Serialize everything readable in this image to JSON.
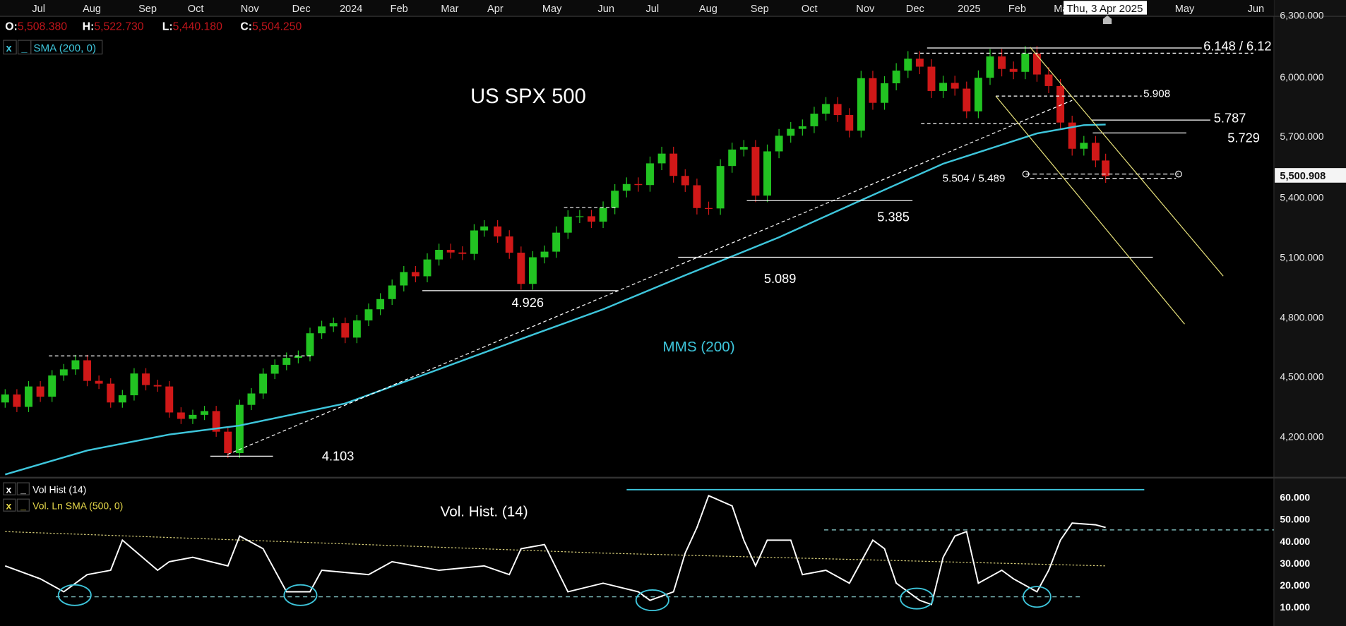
{
  "header": {
    "ohlc": [
      {
        "label": "O:",
        "value": "5,508.380"
      },
      {
        "label": "H:",
        "value": "5,522.730"
      },
      {
        "label": "L:",
        "value": "5,440.180"
      },
      {
        "label": "C:",
        "value": "5,504.250"
      }
    ],
    "indicator": {
      "close": "x",
      "minimize": "_",
      "label": "SMA (200, 0)"
    }
  },
  "volume_pane": {
    "indicators": [
      {
        "close": "x",
        "minimize": "_",
        "label": "Vol Hist (14)"
      },
      {
        "close": "x",
        "minimize": "_",
        "label": "Vol. Ln SMA (500, 0)"
      }
    ],
    "title": "Vol. Hist. (14)"
  },
  "crosshair_tooltip": "Thu, 3 Apr 2025",
  "colors": {
    "up": "#22c322",
    "down": "#d01818",
    "sma": "#3ec6dc",
    "channel": "#e6e07a",
    "background": "#000000",
    "axis_bg": "#121212",
    "ohlc_values": "#c0151b"
  },
  "chart_data": [
    {
      "type": "candlestick",
      "title": "US SPX 500",
      "sma_label": "MMS (200)",
      "x_tick_labels": [
        "Jul",
        "Aug",
        "Sep",
        "Oct",
        "Nov",
        "Dec",
        "2024",
        "Feb",
        "Mar",
        "Apr",
        "May",
        "Jun",
        "Jul",
        "Aug",
        "Sep",
        "Oct",
        "Nov",
        "Dec",
        "2025",
        "Feb",
        "Ma",
        "May",
        "Jun"
      ],
      "y_tick_labels": [
        "6,300.000",
        "6,000.000",
        "5,700.000",
        "5,400.000",
        "5,100.000",
        "4,800.000",
        "4,500.000",
        "4,200.000"
      ],
      "y_ticks": [
        6300,
        6000,
        5700,
        5400,
        5100,
        4800,
        4500,
        4200
      ],
      "last_price_label": "5,500.908",
      "last_price": 5500.908,
      "grid": false,
      "closes": [
        [
          "2023-06-16",
          4410
        ],
        [
          "2023-06-23",
          4348
        ],
        [
          "2023-06-30",
          4450
        ],
        [
          "2023-07-07",
          4399
        ],
        [
          "2023-07-14",
          4505
        ],
        [
          "2023-07-21",
          4536
        ],
        [
          "2023-07-28",
          4582
        ],
        [
          "2023-08-04",
          4478
        ],
        [
          "2023-08-11",
          4464
        ],
        [
          "2023-08-18",
          4370
        ],
        [
          "2023-08-25",
          4406
        ],
        [
          "2023-09-01",
          4515
        ],
        [
          "2023-09-08",
          4457
        ],
        [
          "2023-09-15",
          4450
        ],
        [
          "2023-09-22",
          4320
        ],
        [
          "2023-09-29",
          4288
        ],
        [
          "2023-10-06",
          4308
        ],
        [
          "2023-10-13",
          4327
        ],
        [
          "2023-10-20",
          4224
        ],
        [
          "2023-10-27",
          4117
        ],
        [
          "2023-11-03",
          4358
        ],
        [
          "2023-11-10",
          4415
        ],
        [
          "2023-11-17",
          4514
        ],
        [
          "2023-11-24",
          4559
        ],
        [
          "2023-12-01",
          4594
        ],
        [
          "2023-12-08",
          4604
        ],
        [
          "2023-12-15",
          4719
        ],
        [
          "2023-12-22",
          4754
        ],
        [
          "2023-12-29",
          4770
        ],
        [
          "2024-01-05",
          4697
        ],
        [
          "2024-01-12",
          4784
        ],
        [
          "2024-01-19",
          4840
        ],
        [
          "2024-01-26",
          4891
        ],
        [
          "2024-02-02",
          4959
        ],
        [
          "2024-02-09",
          5026
        ],
        [
          "2024-02-16",
          5005
        ],
        [
          "2024-02-23",
          5089
        ],
        [
          "2024-03-01",
          5137
        ],
        [
          "2024-03-08",
          5124
        ],
        [
          "2024-03-15",
          5117
        ],
        [
          "2024-03-22",
          5234
        ],
        [
          "2024-03-28",
          5254
        ],
        [
          "2024-04-05",
          5204
        ],
        [
          "2024-04-12",
          5123
        ],
        [
          "2024-04-19",
          4967
        ],
        [
          "2024-04-26",
          5100
        ],
        [
          "2024-05-03",
          5128
        ],
        [
          "2024-05-10",
          5223
        ],
        [
          "2024-05-17",
          5303
        ],
        [
          "2024-05-24",
          5305
        ],
        [
          "2024-05-31",
          5278
        ],
        [
          "2024-06-07",
          5347
        ],
        [
          "2024-06-14",
          5432
        ],
        [
          "2024-06-21",
          5465
        ],
        [
          "2024-06-28",
          5460
        ],
        [
          "2024-07-05",
          5567
        ],
        [
          "2024-07-12",
          5615
        ],
        [
          "2024-07-19",
          5505
        ],
        [
          "2024-07-26",
          5459
        ],
        [
          "2024-08-02",
          5346
        ],
        [
          "2024-08-09",
          5344
        ],
        [
          "2024-08-16",
          5554
        ],
        [
          "2024-08-23",
          5635
        ],
        [
          "2024-08-30",
          5648
        ],
        [
          "2024-09-06",
          5408
        ],
        [
          "2024-09-13",
          5626
        ],
        [
          "2024-09-20",
          5703
        ],
        [
          "2024-09-27",
          5738
        ],
        [
          "2024-10-04",
          5751
        ],
        [
          "2024-10-11",
          5815
        ],
        [
          "2024-10-18",
          5864
        ],
        [
          "2024-10-25",
          5808
        ],
        [
          "2024-11-01",
          5729
        ],
        [
          "2024-11-08",
          5995
        ],
        [
          "2024-11-15",
          5870
        ],
        [
          "2024-11-22",
          5969
        ],
        [
          "2024-11-29",
          6032
        ],
        [
          "2024-12-06",
          6090
        ],
        [
          "2024-12-13",
          6051
        ],
        [
          "2024-12-20",
          5930
        ],
        [
          "2024-12-27",
          5971
        ],
        [
          "2025-01-03",
          5942
        ],
        [
          "2025-01-10",
          5827
        ],
        [
          "2025-01-17",
          5997
        ],
        [
          "2025-01-24",
          6101
        ],
        [
          "2025-01-31",
          6040
        ],
        [
          "2025-02-07",
          6026
        ],
        [
          "2025-02-14",
          6115
        ],
        [
          "2025-02-21",
          6013
        ],
        [
          "2025-02-28",
          5955
        ],
        [
          "2025-03-07",
          5770
        ],
        [
          "2025-03-14",
          5639
        ],
        [
          "2025-03-21",
          5668
        ],
        [
          "2025-03-28",
          5581
        ],
        [
          "2025-04-03",
          5504
        ]
      ],
      "sma200": [
        [
          "2023-06-16",
          4010
        ],
        [
          "2023-08-04",
          4130
        ],
        [
          "2023-09-22",
          4210
        ],
        [
          "2023-11-03",
          4255
        ],
        [
          "2024-01-05",
          4365
        ],
        [
          "2024-02-23",
          4515
        ],
        [
          "2024-04-19",
          4690
        ],
        [
          "2024-06-07",
          4840
        ],
        [
          "2024-07-26",
          5010
        ],
        [
          "2024-09-20",
          5200
        ],
        [
          "2024-11-08",
          5385
        ],
        [
          "2024-12-27",
          5565
        ],
        [
          "2025-02-21",
          5715
        ],
        [
          "2025-03-21",
          5757
        ],
        [
          "2025-04-03",
          5760
        ]
      ],
      "annotations": [
        {
          "label": "4.103",
          "level": 4103
        },
        {
          "label": "4.926",
          "level": 4926
        },
        {
          "label": "5.089",
          "level": 5089
        },
        {
          "label": "5.385",
          "level": 5385
        },
        {
          "label": "5.504 / 5.489",
          "level": 5504
        },
        {
          "label": "5.729",
          "level": 5729
        },
        {
          "label": "5.787",
          "level": 5787
        },
        {
          "label": "5.908",
          "level": 5908
        },
        {
          "label": "6.148 / 6.12",
          "level": 6148
        }
      ]
    },
    {
      "type": "line",
      "title": "Vol. Hist. (14)",
      "y_tick_labels": [
        "60.000",
        "50.000",
        "40.000",
        "30.000",
        "20.000",
        "10.000"
      ],
      "y_ticks": [
        60,
        50,
        40,
        30,
        20,
        10
      ],
      "series": [
        {
          "name": "Vol Hist (14)",
          "points": [
            [
              "2023-06-16",
              28.8
            ],
            [
              "2023-07-07",
              22.9
            ],
            [
              "2023-07-21",
              17
            ],
            [
              "2023-08-04",
              24.8
            ],
            [
              "2023-08-18",
              26.8
            ],
            [
              "2023-08-25",
              40.5
            ],
            [
              "2023-09-15",
              26.8
            ],
            [
              "2023-09-22",
              30.7
            ],
            [
              "2023-10-06",
              32.7
            ],
            [
              "2023-10-27",
              28.8
            ],
            [
              "2023-11-03",
              42.4
            ],
            [
              "2023-11-17",
              36.6
            ],
            [
              "2023-12-01",
              17
            ],
            [
              "2023-12-15",
              17
            ],
            [
              "2023-12-22",
              26.8
            ],
            [
              "2024-01-19",
              24.8
            ],
            [
              "2024-02-02",
              30.7
            ],
            [
              "2024-03-01",
              26.8
            ],
            [
              "2024-03-28",
              28.8
            ],
            [
              "2024-04-12",
              24.8
            ],
            [
              "2024-04-19",
              36.6
            ],
            [
              "2024-05-03",
              38.5
            ],
            [
              "2024-05-17",
              17
            ],
            [
              "2024-06-07",
              20.9
            ],
            [
              "2024-06-28",
              17
            ],
            [
              "2024-07-05",
              13.1
            ],
            [
              "2024-07-19",
              17
            ],
            [
              "2024-07-26",
              34.6
            ],
            [
              "2024-08-02",
              46.3
            ],
            [
              "2024-08-09",
              60.8
            ],
            [
              "2024-08-23",
              56.1
            ],
            [
              "2024-08-30",
              40.5
            ],
            [
              "2024-09-06",
              28.8
            ],
            [
              "2024-09-13",
              40.5
            ],
            [
              "2024-09-27",
              40.5
            ],
            [
              "2024-10-04",
              24.8
            ],
            [
              "2024-10-18",
              26.8
            ],
            [
              "2024-11-01",
              20.9
            ],
            [
              "2024-11-15",
              40.5
            ],
            [
              "2024-11-22",
              36.6
            ],
            [
              "2024-11-29",
              20.9
            ],
            [
              "2024-12-13",
              13.1
            ],
            [
              "2024-12-20",
              11.2
            ],
            [
              "2024-12-27",
              32.7
            ],
            [
              "2025-01-03",
              42.4
            ],
            [
              "2025-01-10",
              44.4
            ],
            [
              "2025-01-17",
              20.9
            ],
            [
              "2025-01-31",
              26.8
            ],
            [
              "2025-02-07",
              22.9
            ],
            [
              "2025-02-21",
              17
            ],
            [
              "2025-02-28",
              26.8
            ],
            [
              "2025-03-07",
              40.5
            ],
            [
              "2025-03-14",
              48.3
            ],
            [
              "2025-03-28",
              47.5
            ],
            [
              "2025-04-03",
              46.3
            ]
          ]
        },
        {
          "name": "Vol. Ln SMA (500, 0)",
          "points": [
            [
              "2023-06-16",
              44.4
            ],
            [
              "2024-06-07",
              34.6
            ],
            [
              "2025-04-03",
              28.8
            ]
          ]
        }
      ]
    }
  ]
}
